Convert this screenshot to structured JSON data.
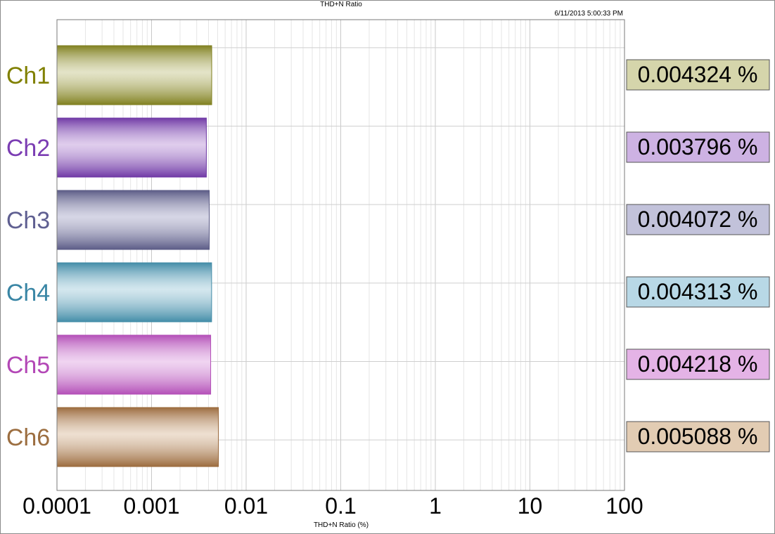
{
  "chart_data": {
    "type": "bar",
    "orientation": "horizontal",
    "title": "THD+N Ratio",
    "timestamp": "6/11/2013 5:00:33 PM",
    "xlabel": "THD+N Ratio (%)",
    "ylabel": "",
    "xscale": "log",
    "xlim": [
      0.0001,
      100
    ],
    "xticks": [
      "0.0001",
      "0.001",
      "0.01",
      "0.1",
      "1",
      "10",
      "100"
    ],
    "grid": true,
    "categories": [
      "Ch1",
      "Ch2",
      "Ch3",
      "Ch4",
      "Ch5",
      "Ch6"
    ],
    "values": [
      0.004324,
      0.003796,
      0.004072,
      0.004313,
      0.004218,
      0.005088
    ],
    "value_labels": [
      "0.004324 %",
      "0.003796 %",
      "0.004072 %",
      "0.004313 %",
      "0.004218 %",
      "0.005088 %"
    ],
    "colors": [
      {
        "bar": "#c2c284",
        "edge": "#7e7e1c",
        "label_text": "#808000",
        "label_bg": "#d5d5ab"
      },
      {
        "bar": "#b88fd6",
        "edge": "#6d36a4",
        "label_text": "#7b3db3",
        "label_bg": "#cdb2e3"
      },
      {
        "bar": "#a4a4c6",
        "edge": "#595984",
        "label_text": "#5f5f91",
        "label_bg": "#c2c2da"
      },
      {
        "bar": "#9ec9d9",
        "edge": "#3f8aa6",
        "label_text": "#3a86a5",
        "label_bg": "#b8d8e6"
      },
      {
        "bar": "#dda0e0",
        "edge": "#b24cb6",
        "label_text": "#b347b6",
        "label_bg": "#e4b3e6"
      },
      {
        "bar": "#d8b898",
        "edge": "#99683a",
        "label_text": "#9c6e40",
        "label_bg": "#e2ccb3"
      }
    ]
  }
}
